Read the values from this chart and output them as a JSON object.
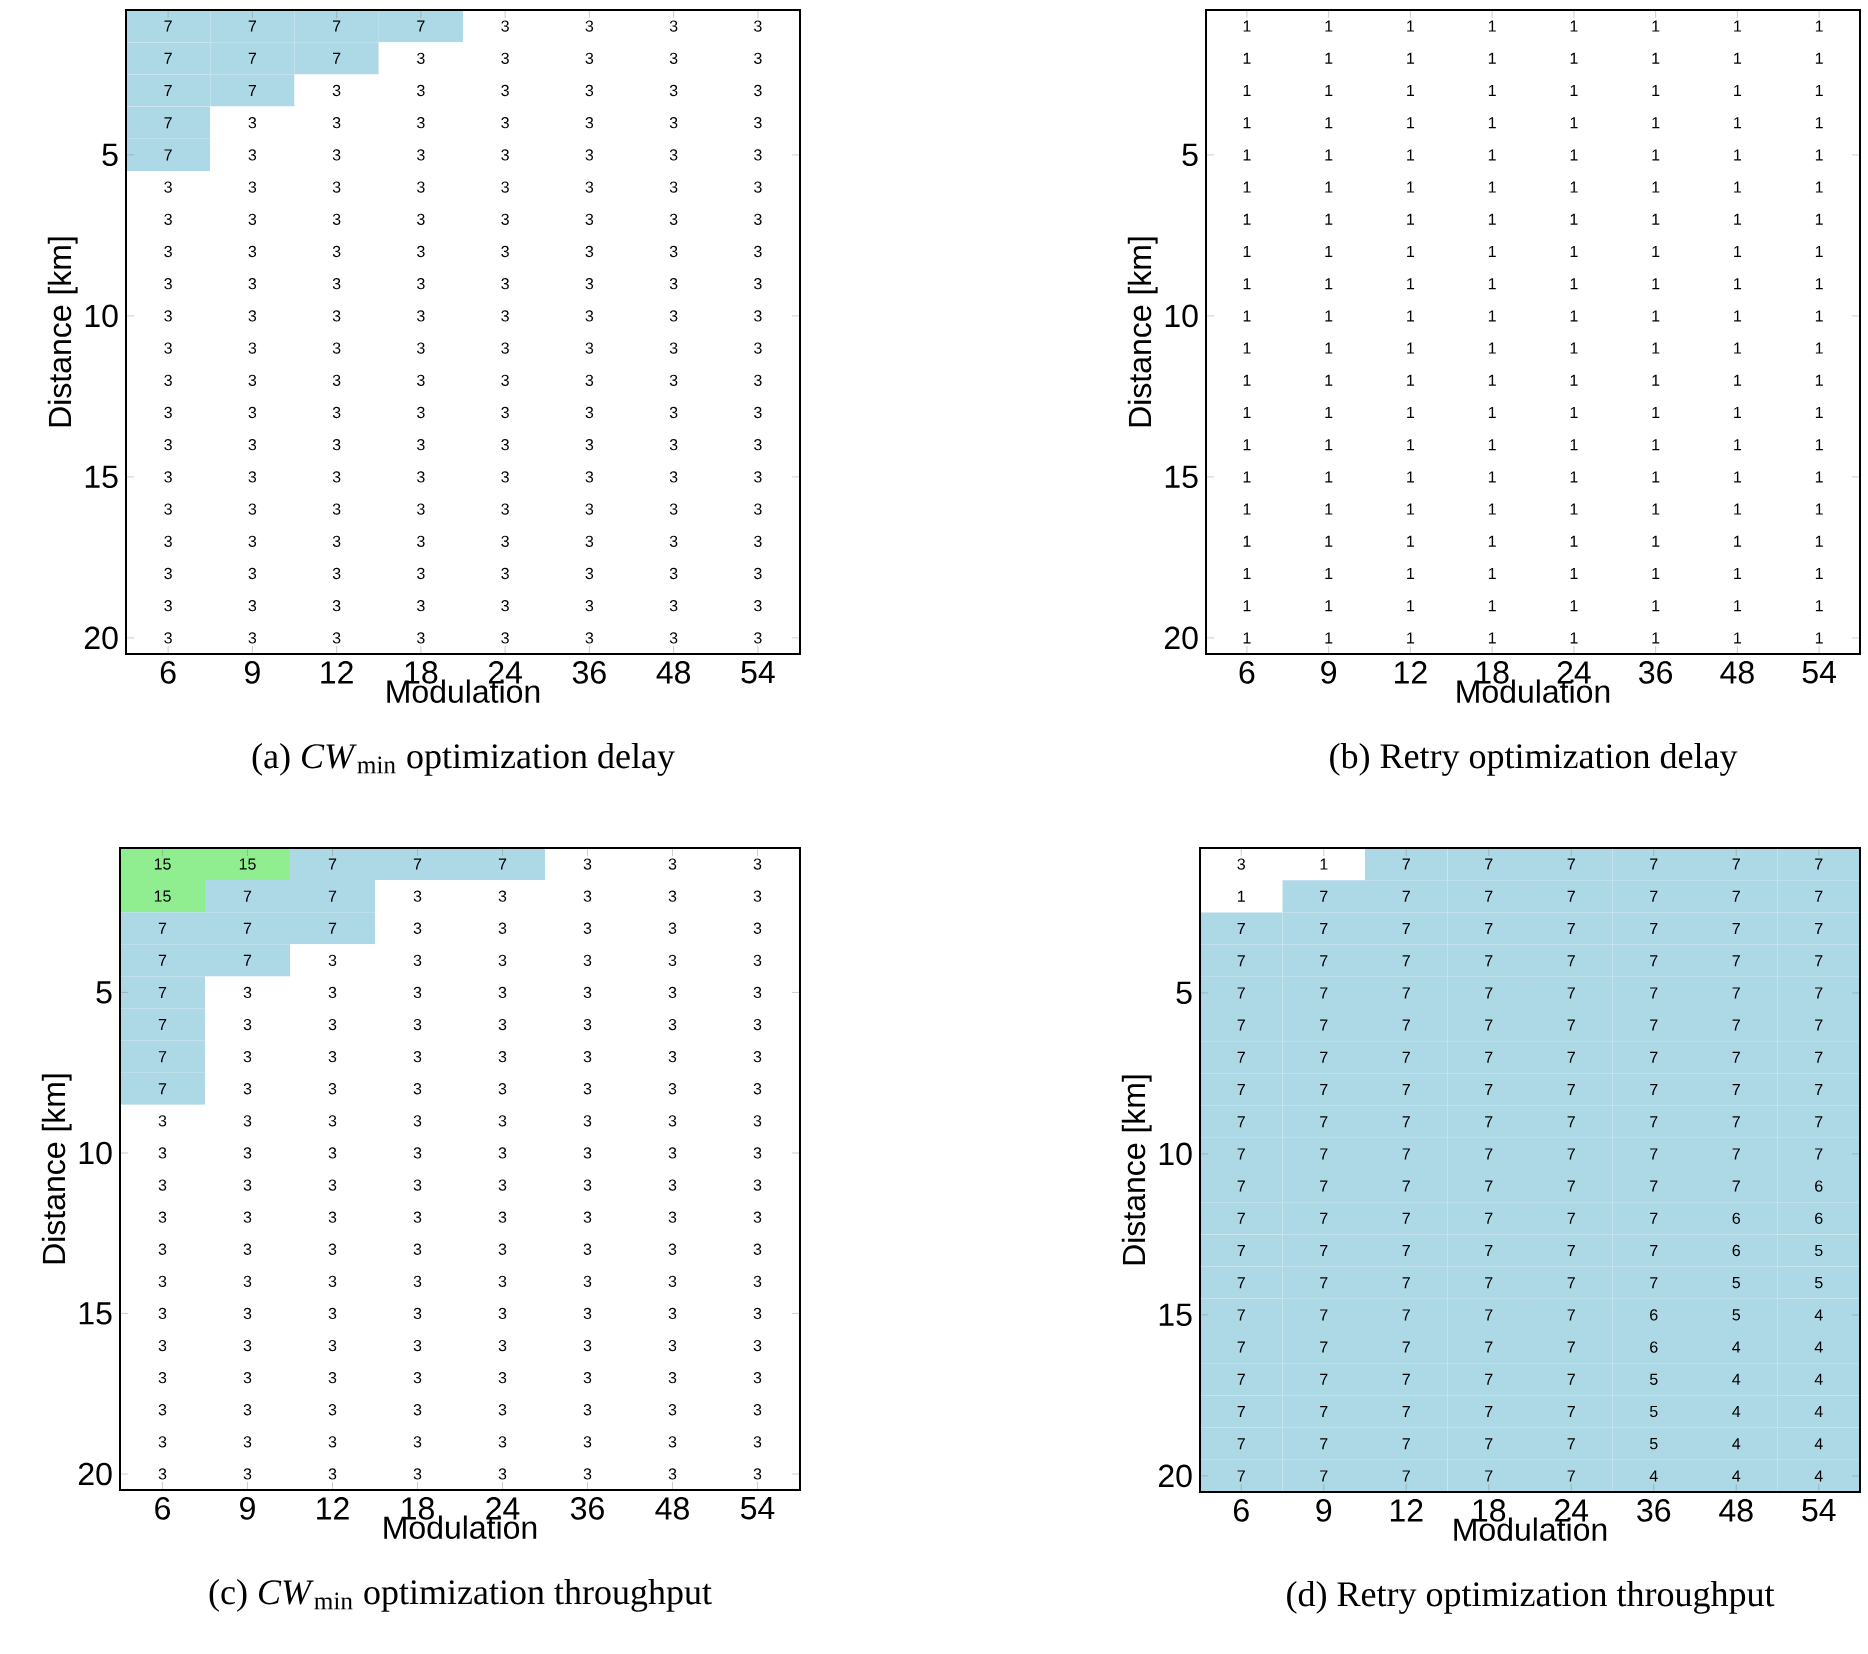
{
  "chart_data": [
    {
      "type": "heatmap",
      "title": "(a) *CW*$_{min}$ optimization delay",
      "xlabel": "Modulation",
      "ylabel": "Distance [km]",
      "categories": [
        "6",
        "9",
        "12",
        "18",
        "24",
        "36",
        "48",
        "54"
      ],
      "y_categories": [
        null,
        null,
        null,
        null,
        "5",
        null,
        null,
        null,
        null,
        "10",
        null,
        null,
        null,
        null,
        "15",
        null,
        null,
        null,
        null,
        "20"
      ],
      "cells": [
        [
          7,
          7,
          7,
          7,
          3,
          3,
          3,
          3
        ],
        [
          7,
          7,
          7,
          3,
          3,
          3,
          3,
          3
        ],
        [
          7,
          7,
          3,
          3,
          3,
          3,
          3,
          3
        ],
        [
          7,
          3,
          3,
          3,
          3,
          3,
          3,
          3
        ],
        [
          7,
          3,
          3,
          3,
          3,
          3,
          3,
          3
        ],
        [
          3,
          3,
          3,
          3,
          3,
          3,
          3,
          3
        ],
        [
          3,
          3,
          3,
          3,
          3,
          3,
          3,
          3
        ],
        [
          3,
          3,
          3,
          3,
          3,
          3,
          3,
          3
        ],
        [
          3,
          3,
          3,
          3,
          3,
          3,
          3,
          3
        ],
        [
          3,
          3,
          3,
          3,
          3,
          3,
          3,
          3
        ],
        [
          3,
          3,
          3,
          3,
          3,
          3,
          3,
          3
        ],
        [
          3,
          3,
          3,
          3,
          3,
          3,
          3,
          3
        ],
        [
          3,
          3,
          3,
          3,
          3,
          3,
          3,
          3
        ],
        [
          3,
          3,
          3,
          3,
          3,
          3,
          3,
          3
        ],
        [
          3,
          3,
          3,
          3,
          3,
          3,
          3,
          3
        ],
        [
          3,
          3,
          3,
          3,
          3,
          3,
          3,
          3
        ],
        [
          3,
          3,
          3,
          3,
          3,
          3,
          3,
          3
        ],
        [
          3,
          3,
          3,
          3,
          3,
          3,
          3,
          3
        ],
        [
          3,
          3,
          3,
          3,
          3,
          3,
          3,
          3
        ],
        [
          3,
          3,
          3,
          3,
          3,
          3,
          3,
          3
        ]
      ],
      "data_labels": true
    },
    {
      "type": "heatmap",
      "title": "(b) Retry optimization delay",
      "xlabel": "Modulation",
      "ylabel": "Distance [km]",
      "categories": [
        "6",
        "9",
        "12",
        "18",
        "24",
        "36",
        "48",
        "54"
      ],
      "y_categories": [
        null,
        null,
        null,
        null,
        "5",
        null,
        null,
        null,
        null,
        "10",
        null,
        null,
        null,
        null,
        "15",
        null,
        null,
        null,
        null,
        "20"
      ],
      "cells": [
        [
          1,
          1,
          1,
          1,
          1,
          1,
          1,
          1
        ],
        [
          1,
          1,
          1,
          1,
          1,
          1,
          1,
          1
        ],
        [
          1,
          1,
          1,
          1,
          1,
          1,
          1,
          1
        ],
        [
          1,
          1,
          1,
          1,
          1,
          1,
          1,
          1
        ],
        [
          1,
          1,
          1,
          1,
          1,
          1,
          1,
          1
        ],
        [
          1,
          1,
          1,
          1,
          1,
          1,
          1,
          1
        ],
        [
          1,
          1,
          1,
          1,
          1,
          1,
          1,
          1
        ],
        [
          1,
          1,
          1,
          1,
          1,
          1,
          1,
          1
        ],
        [
          1,
          1,
          1,
          1,
          1,
          1,
          1,
          1
        ],
        [
          1,
          1,
          1,
          1,
          1,
          1,
          1,
          1
        ],
        [
          1,
          1,
          1,
          1,
          1,
          1,
          1,
          1
        ],
        [
          1,
          1,
          1,
          1,
          1,
          1,
          1,
          1
        ],
        [
          1,
          1,
          1,
          1,
          1,
          1,
          1,
          1
        ],
        [
          1,
          1,
          1,
          1,
          1,
          1,
          1,
          1
        ],
        [
          1,
          1,
          1,
          1,
          1,
          1,
          1,
          1
        ],
        [
          1,
          1,
          1,
          1,
          1,
          1,
          1,
          1
        ],
        [
          1,
          1,
          1,
          1,
          1,
          1,
          1,
          1
        ],
        [
          1,
          1,
          1,
          1,
          1,
          1,
          1,
          1
        ],
        [
          1,
          1,
          1,
          1,
          1,
          1,
          1,
          1
        ],
        [
          1,
          1,
          1,
          1,
          1,
          1,
          1,
          1
        ]
      ],
      "data_labels": true
    },
    {
      "type": "heatmap",
      "title": "(c) *CW*$_{min}$ optimization throughput",
      "xlabel": "Modulation",
      "ylabel": "Distance [km]",
      "categories": [
        "6",
        "9",
        "12",
        "18",
        "24",
        "36",
        "48",
        "54"
      ],
      "y_categories": [
        null,
        null,
        null,
        null,
        "5",
        null,
        null,
        null,
        null,
        "10",
        null,
        null,
        null,
        null,
        "15",
        null,
        null,
        null,
        null,
        "20"
      ],
      "cells": [
        [
          15,
          15,
          7,
          7,
          7,
          3,
          3,
          3
        ],
        [
          15,
          7,
          7,
          3,
          3,
          3,
          3,
          3
        ],
        [
          7,
          7,
          7,
          3,
          3,
          3,
          3,
          3
        ],
        [
          7,
          7,
          3,
          3,
          3,
          3,
          3,
          3
        ],
        [
          7,
          3,
          3,
          3,
          3,
          3,
          3,
          3
        ],
        [
          7,
          3,
          3,
          3,
          3,
          3,
          3,
          3
        ],
        [
          7,
          3,
          3,
          3,
          3,
          3,
          3,
          3
        ],
        [
          7,
          3,
          3,
          3,
          3,
          3,
          3,
          3
        ],
        [
          3,
          3,
          3,
          3,
          3,
          3,
          3,
          3
        ],
        [
          3,
          3,
          3,
          3,
          3,
          3,
          3,
          3
        ],
        [
          3,
          3,
          3,
          3,
          3,
          3,
          3,
          3
        ],
        [
          3,
          3,
          3,
          3,
          3,
          3,
          3,
          3
        ],
        [
          3,
          3,
          3,
          3,
          3,
          3,
          3,
          3
        ],
        [
          3,
          3,
          3,
          3,
          3,
          3,
          3,
          3
        ],
        [
          3,
          3,
          3,
          3,
          3,
          3,
          3,
          3
        ],
        [
          3,
          3,
          3,
          3,
          3,
          3,
          3,
          3
        ],
        [
          3,
          3,
          3,
          3,
          3,
          3,
          3,
          3
        ],
        [
          3,
          3,
          3,
          3,
          3,
          3,
          3,
          3
        ],
        [
          3,
          3,
          3,
          3,
          3,
          3,
          3,
          3
        ],
        [
          3,
          3,
          3,
          3,
          3,
          3,
          3,
          3
        ]
      ],
      "data_labels": true
    },
    {
      "type": "heatmap",
      "title": "(d) Retry optimization throughput",
      "xlabel": "Modulation",
      "ylabel": "Distance [km]",
      "categories": [
        "6",
        "9",
        "12",
        "18",
        "24",
        "36",
        "48",
        "54"
      ],
      "y_categories": [
        null,
        null,
        null,
        null,
        "5",
        null,
        null,
        null,
        null,
        "10",
        null,
        null,
        null,
        null,
        "15",
        null,
        null,
        null,
        null,
        "20"
      ],
      "cells": [
        [
          3,
          1,
          7,
          7,
          7,
          7,
          7,
          7
        ],
        [
          1,
          7,
          7,
          7,
          7,
          7,
          7,
          7
        ],
        [
          7,
          7,
          7,
          7,
          7,
          7,
          7,
          7
        ],
        [
          7,
          7,
          7,
          7,
          7,
          7,
          7,
          7
        ],
        [
          7,
          7,
          7,
          7,
          7,
          7,
          7,
          7
        ],
        [
          7,
          7,
          7,
          7,
          7,
          7,
          7,
          7
        ],
        [
          7,
          7,
          7,
          7,
          7,
          7,
          7,
          7
        ],
        [
          7,
          7,
          7,
          7,
          7,
          7,
          7,
          7
        ],
        [
          7,
          7,
          7,
          7,
          7,
          7,
          7,
          7
        ],
        [
          7,
          7,
          7,
          7,
          7,
          7,
          7,
          7
        ],
        [
          7,
          7,
          7,
          7,
          7,
          7,
          7,
          6
        ],
        [
          7,
          7,
          7,
          7,
          7,
          7,
          6,
          6
        ],
        [
          7,
          7,
          7,
          7,
          7,
          7,
          6,
          5
        ],
        [
          7,
          7,
          7,
          7,
          7,
          7,
          5,
          5
        ],
        [
          7,
          7,
          7,
          7,
          7,
          6,
          5,
          4
        ],
        [
          7,
          7,
          7,
          7,
          7,
          6,
          4,
          4
        ],
        [
          7,
          7,
          7,
          7,
          7,
          5,
          4,
          4
        ],
        [
          7,
          7,
          7,
          7,
          7,
          5,
          4,
          4
        ],
        [
          7,
          7,
          7,
          7,
          7,
          5,
          4,
          4
        ],
        [
          7,
          7,
          7,
          7,
          7,
          4,
          4,
          4
        ]
      ],
      "data_labels": true
    }
  ]
}
